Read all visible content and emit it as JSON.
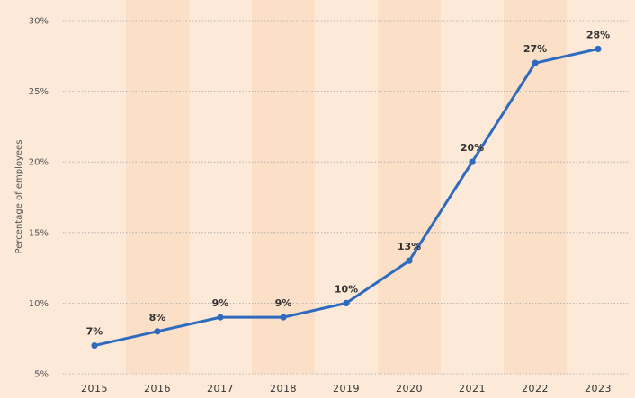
{
  "chart_data": {
    "type": "line",
    "title": "",
    "xlabel": "",
    "ylabel": "Percentage of employees",
    "x": [
      "2015",
      "2016",
      "2017",
      "2018",
      "2019",
      "2020",
      "2021",
      "2022",
      "2023"
    ],
    "series": [
      {
        "values": [
          7,
          8,
          9,
          9,
          10,
          13,
          20,
          27,
          28
        ],
        "labels": [
          "7%",
          "8%",
          "9%",
          "9%",
          "10%",
          "13%",
          "20%",
          "27%",
          "28%"
        ],
        "color": "#2e6bbf"
      }
    ],
    "yticks": [
      5,
      10,
      15,
      20,
      25,
      30
    ],
    "ytick_labels": [
      "5%",
      "10%",
      "15%",
      "20%",
      "25%",
      "30%"
    ],
    "ylim": [
      5,
      30
    ],
    "grid": true,
    "colors": {
      "background": "#fde9d7",
      "band": "#fbdfc7",
      "grid": "#a8a8a8",
      "line": "#2e6bbf"
    }
  }
}
